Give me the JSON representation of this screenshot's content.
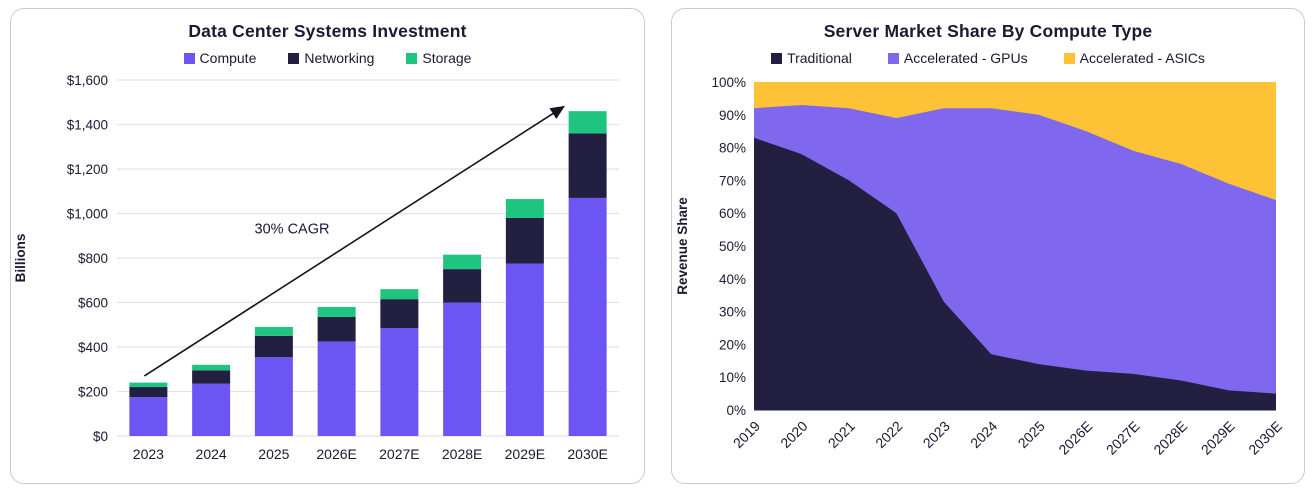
{
  "chart_data": [
    {
      "type": "bar",
      "stacked": true,
      "title": "Data Center Systems Investment",
      "ylabel": "Billions",
      "xlabel": "",
      "categories": [
        "2023",
        "2024",
        "2025",
        "2026E",
        "2027E",
        "2028E",
        "2029E",
        "2030E"
      ],
      "series": [
        {
          "name": "Compute",
          "color": "#6C55F3",
          "values": [
            175,
            235,
            355,
            425,
            485,
            600,
            775,
            1070
          ]
        },
        {
          "name": "Networking",
          "color": "#221F40",
          "values": [
            45,
            60,
            95,
            110,
            130,
            150,
            205,
            290
          ]
        },
        {
          "name": "Storage",
          "color": "#1EC47F",
          "values": [
            20,
            25,
            40,
            45,
            45,
            65,
            85,
            100
          ]
        }
      ],
      "totals": [
        240,
        320,
        490,
        580,
        660,
        815,
        1065,
        1460
      ],
      "ylim": [
        0,
        1600
      ],
      "ytick_step": 200,
      "ytick_format": "$#,##0",
      "grid": "horizontal",
      "legend_position": "top",
      "annotation": {
        "label": "30% CAGR",
        "type": "arrow",
        "from_category": "2023",
        "to_category": "2030E"
      }
    },
    {
      "type": "area",
      "stacked": true,
      "normalized": true,
      "title": "Server Market Share By Compute Type",
      "ylabel": "Revenue Share",
      "xlabel": "",
      "categories": [
        "2019",
        "2020",
        "2021",
        "2022",
        "2023",
        "2024",
        "2025",
        "2026E",
        "2027E",
        "2028E",
        "2029E",
        "2030E"
      ],
      "series": [
        {
          "name": "Traditional",
          "color": "#221F40",
          "values": [
            83,
            78,
            70,
            60,
            33,
            17,
            14,
            12,
            11,
            9,
            6,
            5
          ]
        },
        {
          "name": "Accelerated - GPUs",
          "color": "#7F68ED",
          "values": [
            9,
            15,
            22,
            29,
            59,
            75,
            76,
            73,
            68,
            66,
            63,
            59
          ]
        },
        {
          "name": "Accelerated - ASICs",
          "color": "#FDC235",
          "values": [
            8,
            7,
            8,
            11,
            8,
            8,
            10,
            15,
            21,
            25,
            31,
            36
          ]
        }
      ],
      "ylim": [
        0,
        100
      ],
      "ytick_step": 10,
      "ytick_format": "0%",
      "grid": "none",
      "legend_position": "top"
    }
  ],
  "style_colors": {
    "text_navy": "#1B1933",
    "gridline": "#E3E3EA",
    "card_border": "#C9CAD5",
    "arrow": "#15131F"
  }
}
